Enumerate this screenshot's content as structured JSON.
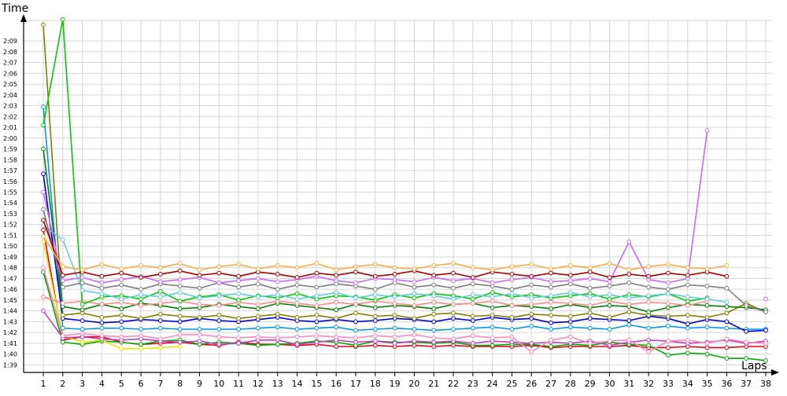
{
  "chart_data": {
    "type": "line",
    "ylabel": "Time",
    "xlabel": "Laps",
    "x": [
      1,
      2,
      3,
      4,
      5,
      6,
      7,
      8,
      9,
      10,
      11,
      12,
      13,
      14,
      15,
      16,
      17,
      18,
      19,
      20,
      21,
      22,
      23,
      24,
      25,
      26,
      27,
      28,
      29,
      30,
      31,
      32,
      33,
      34,
      35,
      36,
      37,
      38
    ],
    "y_tick_labels": [
      "1:39",
      "1:40",
      "1:41",
      "1:42",
      "1:43",
      "1:44",
      "1:45",
      "1:46",
      "1:47",
      "1:48",
      "1:49",
      "1:50",
      "1:51",
      "1:52",
      "1:53",
      "1:54",
      "1:55",
      "1:56",
      "1:57",
      "1:58",
      "1:59",
      "2:00",
      "2:01",
      "2:02",
      "2:03",
      "2:04",
      "2:05",
      "2:06",
      "2:07",
      "2:08",
      "2:09"
    ],
    "ylim_seconds": [
      98.3,
      130.9
    ],
    "y_unit": "seconds (displayed as m:ss)",
    "grid": true,
    "series": [
      {
        "color": "#e8001c",
        "values": [
          111.5,
          101.3,
          101.6,
          101.6,
          101.1,
          100.9,
          101.0,
          101.1,
          100.9,
          100.8,
          101.1,
          100.9,
          100.9,
          100.8,
          100.9,
          100.7,
          100.7,
          100.8,
          100.7,
          100.8,
          100.7,
          100.8,
          100.7,
          100.7,
          100.7,
          100.8,
          100.6,
          100.7,
          100.7,
          100.7,
          100.8,
          100.6,
          100.6,
          100.7,
          100.6,
          100.6,
          100.7,
          100.7
        ]
      },
      {
        "color": "#00aa00",
        "values": [
          107.6,
          101.1,
          100.9,
          101.2,
          101.1,
          100.9,
          101.2,
          101.3,
          100.9,
          101.1,
          101.0,
          100.8,
          100.9,
          101.0,
          101.2,
          101.1,
          100.8,
          101.2,
          101.1,
          101.1,
          101.0,
          101.1,
          100.8,
          100.8,
          100.9,
          100.9,
          100.7,
          100.9,
          100.8,
          101.1,
          100.9,
          100.8,
          99.9,
          100.1,
          100.0,
          99.6,
          99.6,
          99.4
        ]
      },
      {
        "color": "#e8e800",
        "values": [
          110.4,
          101.7,
          101.1,
          101.3,
          100.5,
          100.5,
          100.6,
          100.7,
          null,
          null,
          null,
          null,
          null,
          null,
          null,
          null,
          null,
          null,
          null,
          null,
          null,
          null,
          null,
          null,
          null,
          null,
          null,
          null,
          null,
          null,
          null,
          null,
          null,
          null,
          null,
          null,
          null,
          null
        ]
      },
      {
        "color": "#c040c0",
        "values": [
          104.0,
          101.5,
          101.6,
          101.4,
          101.3,
          101.4,
          101.2,
          101.1,
          101.2,
          100.9,
          101.0,
          101.3,
          101.3,
          100.9,
          101.1,
          101.3,
          101.1,
          101.2,
          101.0,
          101.2,
          101.1,
          101.2,
          101.0,
          101.2,
          101.1,
          101.0,
          101.1,
          101.0,
          101.2,
          100.8,
          101.1,
          101.3,
          101.2,
          101.0,
          101.1,
          101.3,
          101.0,
          101.2
        ]
      },
      {
        "color": "#ff88bb",
        "values": [
          108.0,
          101.7,
          101.9,
          101.7,
          101.6,
          101.7,
          101.4,
          101.8,
          101.8,
          101.6,
          101.5,
          101.6,
          101.5,
          101.6,
          101.7,
          101.6,
          101.5,
          101.7,
          101.6,
          101.8,
          101.5,
          101.4,
          101.7,
          101.5,
          101.6,
          100.2,
          101.3,
          101.6,
          101.0,
          101.2,
          101.3,
          100.2,
          101.2,
          101.3,
          101.0,
          101.4,
          101.1,
          101.0
        ]
      },
      {
        "color": "#0099ee",
        "values": [
          122.9,
          102.4,
          102.3,
          102.4,
          102.4,
          102.3,
          102.4,
          102.3,
          102.3,
          102.3,
          102.3,
          102.4,
          102.5,
          102.3,
          102.4,
          102.5,
          102.2,
          102.3,
          102.4,
          102.3,
          102.2,
          102.3,
          102.4,
          102.5,
          102.3,
          102.6,
          102.3,
          102.5,
          102.4,
          102.3,
          102.7,
          102.4,
          102.6,
          102.4,
          102.5,
          102.4,
          102.3,
          102.3
        ]
      },
      {
        "color": "#0000dd",
        "values": [
          116.7,
          103.3,
          103.1,
          102.9,
          103.0,
          103.2,
          103.1,
          103.0,
          103.3,
          103.1,
          103.0,
          103.2,
          103.4,
          103.1,
          103.0,
          103.2,
          103.0,
          103.1,
          103.3,
          103.2,
          103.0,
          103.3,
          103.1,
          103.4,
          103.2,
          103.3,
          102.9,
          103.0,
          103.3,
          103.2,
          103.1,
          103.5,
          103.3,
          102.8,
          103.2,
          103.0,
          102.1,
          102.2
        ]
      },
      {
        "color": "#808000",
        "values": [
          130.5,
          103.6,
          103.8,
          103.4,
          103.6,
          103.3,
          103.7,
          103.5,
          103.4,
          103.6,
          103.3,
          103.5,
          103.7,
          103.4,
          103.6,
          103.3,
          103.8,
          103.5,
          103.6,
          103.3,
          103.7,
          103.8,
          103.5,
          103.6,
          103.4,
          103.7,
          103.6,
          103.5,
          103.8,
          103.4,
          103.9,
          103.6,
          103.5,
          103.6,
          103.4,
          103.8,
          104.7,
          103.9
        ]
      },
      {
        "color": "#008000",
        "values": [
          119.0,
          104.4,
          104.1,
          104.6,
          104.2,
          104.7,
          104.5,
          104.2,
          104.3,
          104.6,
          104.4,
          104.2,
          104.7,
          104.5,
          104.3,
          104.1,
          104.6,
          104.3,
          104.5,
          104.4,
          104.2,
          104.6,
          104.7,
          104.3,
          104.5,
          104.4,
          104.2,
          104.6,
          104.3,
          104.5,
          104.4,
          103.9,
          104.3,
          104.6,
          104.5,
          104.4,
          104.3,
          104.1
        ]
      },
      {
        "color": "#ff8888",
        "values": [
          105.3,
          104.7,
          104.9,
          104.6,
          104.8,
          104.5,
          104.7,
          104.9,
          104.6,
          104.5,
          104.8,
          104.6,
          104.9,
          104.7,
          104.5,
          104.8,
          104.6,
          104.9,
          104.7,
          104.5,
          104.8,
          104.6,
          104.7,
          104.9,
          104.5,
          104.6,
          104.8,
          104.7,
          104.5,
          104.9,
          104.6,
          104.8,
          104.7,
          104.5,
          104.9,
          null,
          null,
          null
        ]
      },
      {
        "color": "#00cc00",
        "values": [
          121.2,
          131.0,
          104.6,
          105.3,
          105.4,
          105.1,
          105.8,
          104.9,
          105.3,
          105.5,
          105.0,
          105.4,
          105.2,
          105.6,
          105.1,
          105.4,
          105.3,
          105.0,
          105.5,
          105.2,
          105.6,
          105.4,
          105.1,
          105.7,
          105.3,
          105.5,
          105.2,
          105.4,
          105.6,
          105.1,
          105.5,
          105.3,
          105.6,
          104.9,
          105.2,
          null,
          null,
          null
        ]
      },
      {
        "color": "#66ccdd",
        "values": [
          111.9,
          110.6,
          105.9,
          105.6,
          105.1,
          105.5,
          105.3,
          105.7,
          105.2,
          105.4,
          105.6,
          105.3,
          105.5,
          105.1,
          105.4,
          105.7,
          105.2,
          105.5,
          105.3,
          105.6,
          105.4,
          105.1,
          105.5,
          105.3,
          105.6,
          105.2,
          105.4,
          105.7,
          105.3,
          105.5,
          105.2,
          105.4,
          105.6,
          105.3,
          105.1,
          104.8,
          null,
          null
        ]
      },
      {
        "color": "#7f7f7f",
        "values": [
          113.4,
          106.2,
          106.6,
          106.1,
          106.4,
          106.0,
          106.5,
          106.3,
          106.1,
          106.6,
          106.2,
          106.5,
          106.0,
          106.4,
          106.2,
          106.5,
          106.3,
          106.0,
          106.6,
          106.2,
          106.4,
          106.1,
          106.5,
          106.3,
          106.0,
          106.4,
          106.2,
          106.5,
          106.1,
          106.3,
          106.6,
          106.2,
          106.0,
          106.4,
          106.3,
          106.1,
          104.5,
          103.9
        ]
      },
      {
        "color": "#cc66ff",
        "values": [
          115.0,
          106.8,
          107.1,
          106.6,
          106.9,
          107.2,
          106.7,
          106.9,
          107.1,
          106.6,
          106.8,
          107.0,
          106.7,
          106.9,
          107.2,
          106.8,
          106.6,
          107.0,
          106.9,
          106.7,
          107.1,
          106.8,
          107.0,
          106.6,
          106.9,
          107.1,
          106.7,
          106.8,
          107.0,
          106.7,
          110.4,
          106.9,
          106.6,
          107.0,
          120.7,
          null,
          null,
          105.1
        ]
      },
      {
        "color": "#aa0000",
        "values": [
          112.4,
          107.3,
          107.6,
          107.2,
          107.5,
          107.1,
          107.4,
          107.7,
          107.3,
          107.5,
          107.2,
          107.6,
          107.4,
          107.1,
          107.5,
          107.3,
          107.6,
          107.2,
          107.4,
          107.7,
          107.3,
          107.5,
          107.1,
          107.6,
          107.4,
          107.2,
          107.5,
          107.3,
          107.6,
          107.1,
          107.4,
          107.2,
          107.5,
          107.3,
          107.6,
          107.2,
          null,
          null
        ]
      },
      {
        "color": "#ffaa44",
        "values": [
          110.9,
          108.1,
          107.8,
          108.3,
          107.9,
          108.2,
          108.0,
          108.4,
          107.8,
          108.1,
          108.3,
          107.9,
          108.2,
          108.0,
          108.4,
          107.8,
          108.1,
          108.3,
          108.0,
          107.9,
          108.2,
          108.4,
          108.0,
          107.8,
          108.1,
          108.3,
          107.9,
          108.2,
          108.0,
          108.4,
          107.8,
          108.1,
          108.3,
          108.0,
          107.9,
          108.2,
          null,
          null
        ]
      }
    ]
  }
}
